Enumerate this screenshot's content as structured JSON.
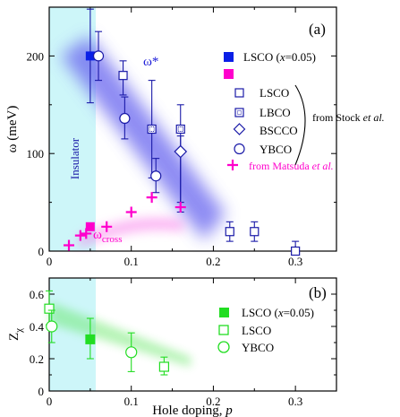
{
  "chart_data": [
    {
      "type": "scatter",
      "panel_label": "(a)",
      "ylabel": "ω (meV)",
      "xlim": [
        0,
        0.35
      ],
      "ylim": [
        0,
        250
      ],
      "y_ticks": [
        0,
        100,
        200
      ],
      "x_ticks": [
        0,
        0.1,
        0.2,
        0.3
      ],
      "x_tick_labels": [
        "0",
        "0.1",
        "0.2",
        "0.3"
      ],
      "shaded_region_label": "Insulator",
      "shaded_region_x": [
        0,
        0.055
      ],
      "band_labels": {
        "upper": "ω*",
        "lower_main": "ω",
        "lower_sub": "cross"
      },
      "legend_top": [
        {
          "label": "LSCO (x=0.05)",
          "marker": "filled-square",
          "color": "#0a1fe6"
        }
      ],
      "legend_top2": [
        {
          "marker": "filled-square",
          "color": "#ff00cc"
        }
      ],
      "legend_stock": [
        {
          "label": "LSCO",
          "marker": "open-square"
        },
        {
          "label": "LBCO",
          "marker": "dotted-square"
        },
        {
          "label": "BSCCO",
          "marker": "diamond"
        },
        {
          "label": "YBCO",
          "marker": "circle"
        }
      ],
      "from_stock": "from Stock et al.",
      "from_matsuda": "from Matsuda et al.",
      "series": [
        {
          "name": "LSCO (x=0.05) ω*",
          "marker": "filled-square",
          "color": "#0a1fe6",
          "points": [
            {
              "x": 0.05,
              "y": 200,
              "elo": 152,
              "ehi": 248
            }
          ]
        },
        {
          "name": "LSCO (x=0.05) ωcross",
          "marker": "filled-square",
          "color": "#ff00cc",
          "points": [
            {
              "x": 0.05,
              "y": 25,
              "elo": 25,
              "ehi": 25
            }
          ]
        },
        {
          "name": "LSCO",
          "marker": "open-square",
          "color": "#1a1aa8",
          "points": [
            {
              "x": 0.09,
              "y": 180,
              "elo": 160,
              "ehi": 195
            },
            {
              "x": 0.22,
              "y": 20,
              "elo": 10,
              "ehi": 30
            },
            {
              "x": 0.25,
              "y": 20,
              "elo": 10,
              "ehi": 30
            },
            {
              "x": 0.3,
              "y": 0,
              "elo": 0,
              "ehi": 10
            }
          ]
        },
        {
          "name": "LBCO",
          "marker": "dotted-square",
          "color": "#1a1aa8",
          "points": [
            {
              "x": 0.125,
              "y": 125,
              "elo": 75,
              "ehi": 175
            },
            {
              "x": 0.16,
              "y": 125,
              "elo": 50,
              "ehi": 150
            }
          ]
        },
        {
          "name": "BSCCO",
          "marker": "diamond",
          "color": "#1a1aa8",
          "points": [
            {
              "x": 0.16,
              "y": 102,
              "elo": 40,
              "ehi": 118
            }
          ]
        },
        {
          "name": "YBCO",
          "marker": "circle",
          "color": "#1a1aa8",
          "points": [
            {
              "x": 0.06,
              "y": 200,
              "elo": 175,
              "ehi": 225
            },
            {
              "x": 0.092,
              "y": 136,
              "elo": 115,
              "ehi": 158
            },
            {
              "x": 0.13,
              "y": 77,
              "elo": 60,
              "ehi": 95
            }
          ]
        },
        {
          "name": "from Matsuda et al.",
          "marker": "plus",
          "color": "#ff00cc",
          "points": [
            {
              "x": 0.024,
              "y": 6
            },
            {
              "x": 0.038,
              "y": 16
            },
            {
              "x": 0.045,
              "y": 18
            },
            {
              "x": 0.07,
              "y": 25
            },
            {
              "x": 0.1,
              "y": 40
            },
            {
              "x": 0.125,
              "y": 55
            },
            {
              "x": 0.16,
              "y": 45
            }
          ]
        }
      ]
    },
    {
      "type": "scatter",
      "panel_label": "(b)",
      "ylabel_main": "Z",
      "ylabel_sub": "χ",
      "xlabel_main": "Hole doping, ",
      "xlabel_var": "p",
      "xlim": [
        0,
        0.35
      ],
      "ylim": [
        0,
        0.7
      ],
      "y_ticks": [
        0,
        0.2,
        0.4,
        0.6
      ],
      "y_tick_labels": [
        "0",
        "0.2",
        "0.4",
        "0.6"
      ],
      "x_ticks": [
        0,
        0.1,
        0.2,
        0.3
      ],
      "x_tick_labels": [
        "0",
        "0.1",
        "0.2",
        "0.3"
      ],
      "legend": [
        {
          "label": "LSCO (x=0.05)",
          "marker": "filled-square",
          "color": "#22dd22"
        },
        {
          "label": "LSCO",
          "marker": "open-square",
          "color": "#22dd22"
        },
        {
          "label": "YBCO",
          "marker": "circle",
          "color": "#22dd22"
        }
      ],
      "series": [
        {
          "name": "LSCO (x=0.05)",
          "marker": "filled-square",
          "color": "#22dd22",
          "points": [
            {
              "x": 0.05,
              "y": 0.32,
              "elo": 0.2,
              "ehi": 0.45
            }
          ]
        },
        {
          "name": "LSCO",
          "marker": "open-square",
          "color": "#22dd22",
          "points": [
            {
              "x": 0.0,
              "y": 0.51,
              "elo": 0.41,
              "ehi": 0.62
            },
            {
              "x": 0.14,
              "y": 0.15,
              "elo": 0.1,
              "ehi": 0.21
            }
          ]
        },
        {
          "name": "YBCO",
          "marker": "circle",
          "color": "#22dd22",
          "points": [
            {
              "x": 0.003,
              "y": 0.4,
              "elo": 0.3,
              "ehi": 0.5
            },
            {
              "x": 0.1,
              "y": 0.24,
              "elo": 0.12,
              "ehi": 0.36
            }
          ]
        }
      ]
    }
  ]
}
